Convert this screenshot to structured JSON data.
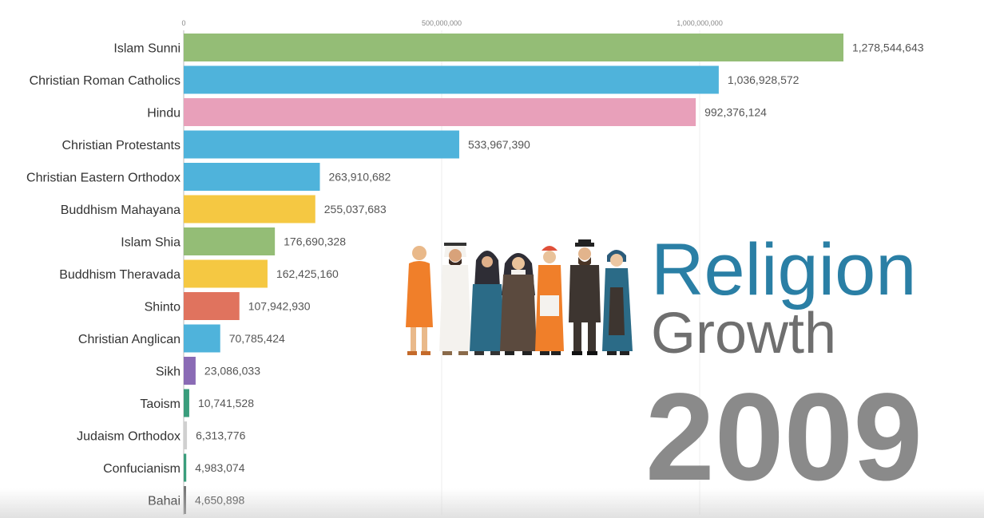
{
  "chart_data": {
    "type": "bar",
    "orientation": "horizontal",
    "categories": [
      "Islam Sunni",
      "Christian Roman Catholics",
      "Hindu",
      "Christian Protestants",
      "Christian Eastern Orthodox",
      "Buddhism Mahayana",
      "Islam Shia",
      "Buddhism Theravada",
      "Shinto",
      "Christian Anglican",
      "Sikh",
      "Taoism",
      "Judaism Orthodox",
      "Confucianism",
      "Bahai"
    ],
    "values": [
      1278544643,
      1036928572,
      992376124,
      533967390,
      263910682,
      255037683,
      176690328,
      162425160,
      107942930,
      70785424,
      23086033,
      10741528,
      6313776,
      4983074,
      4650898
    ],
    "value_labels": [
      "1,278,544,643",
      "1,036,928,572",
      "992,376,124",
      "533,967,390",
      "263,910,682",
      "255,037,683",
      "176,690,328",
      "162,425,160",
      "107,942,930",
      "70,785,424",
      "23,086,033",
      "10,741,528",
      "6,313,776",
      "4,983,074",
      "4,650,898"
    ],
    "colors": [
      "#94bd76",
      "#4fb3db",
      "#e8a0ba",
      "#4fb3db",
      "#4fb3db",
      "#f5c842",
      "#94bd76",
      "#f5c842",
      "#e0735e",
      "#4fb3db",
      "#8a6bb5",
      "#3a9d7c",
      "#d0d0d0",
      "#3a9d7c",
      "#777777"
    ],
    "x_ticks": [
      0,
      500000000,
      1000000000
    ],
    "x_tick_labels": [
      "0",
      "500,000,000",
      "1,000,000,000"
    ],
    "xlim": [
      0,
      1278544643
    ],
    "grid": true,
    "title": "Religion",
    "subtitle": "Growth",
    "year": "2009"
  },
  "colors": {
    "title": "#2a7fa5",
    "subtitle": "#6f6f6f",
    "year": "#8a8a8a"
  },
  "illustration": {
    "icon": "diverse-religious-people-illustration"
  }
}
